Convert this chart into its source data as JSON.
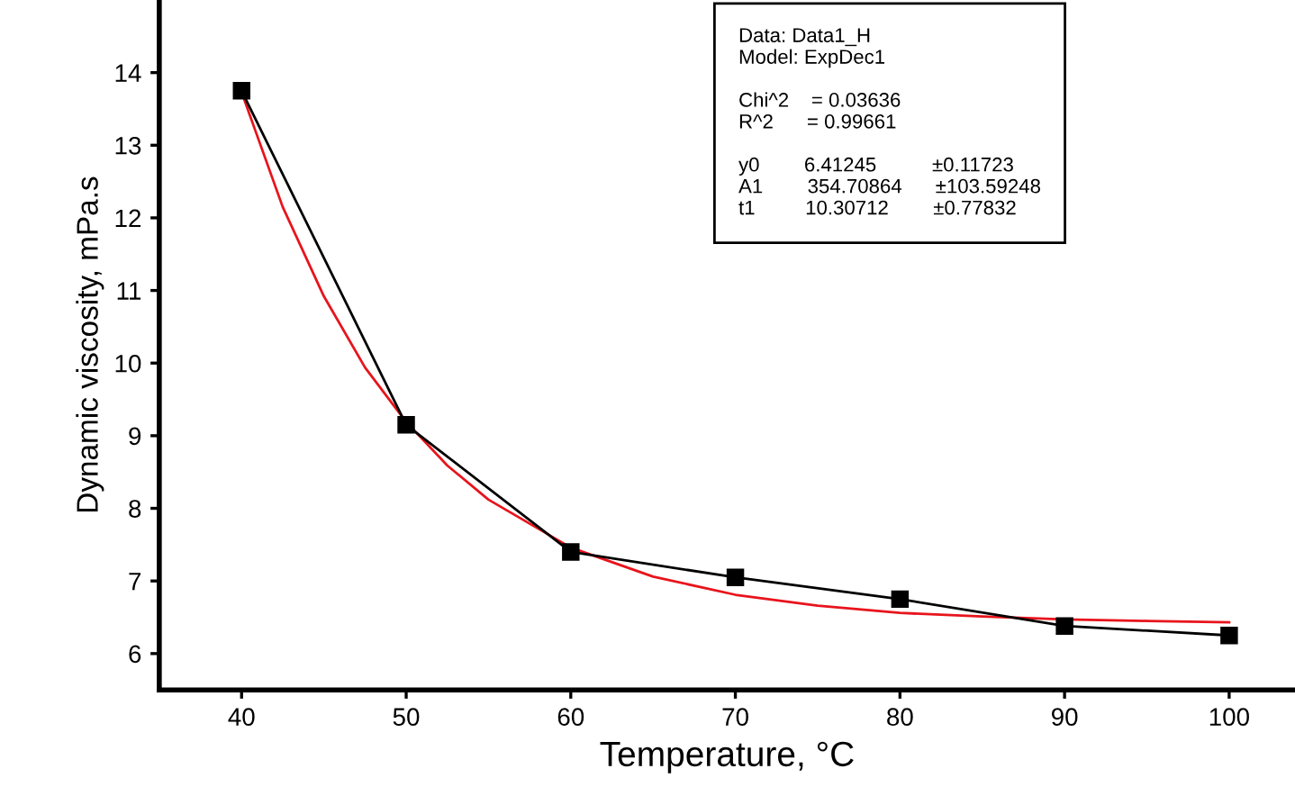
{
  "chart_data": {
    "type": "line",
    "xlabel": "Temperature, °C",
    "ylabel": "Dynamic viscosity, mPa.s",
    "xlim": [
      35,
      104
    ],
    "xticks": [
      40,
      50,
      60,
      70,
      80,
      90,
      100
    ],
    "ylim": [
      5.5,
      15
    ],
    "yticks": [
      6,
      7,
      8,
      9,
      10,
      11,
      12,
      13,
      14
    ],
    "grid": false,
    "legend": false,
    "series": [
      {
        "color": "#000000",
        "marker": "square",
        "x": [
          40,
          50,
          60,
          70,
          80,
          90,
          100
        ],
        "values": [
          13.75,
          9.15,
          7.4,
          7.05,
          6.75,
          6.38,
          6.25
        ]
      },
      {
        "color": "#e8141c",
        "marker": "none",
        "x": [
          40,
          42.5,
          45,
          47.5,
          50,
          52.5,
          55,
          60,
          65,
          70,
          75,
          80,
          85,
          90,
          95,
          100
        ],
        "values": [
          13.73,
          12.15,
          10.92,
          9.94,
          9.19,
          8.59,
          8.12,
          7.46,
          7.06,
          6.81,
          6.66,
          6.56,
          6.51,
          6.47,
          6.45,
          6.43
        ]
      }
    ],
    "annotations": [
      "Data: Data1_H\nModel: ExpDec1\n\nChi^2    = 0.03636\nR^2      = 0.99661\n\ny0        6.41245          ±0.11723\nA1        354.70864      ±103.59248\nt1         10.30712        ±0.77832"
    ]
  }
}
